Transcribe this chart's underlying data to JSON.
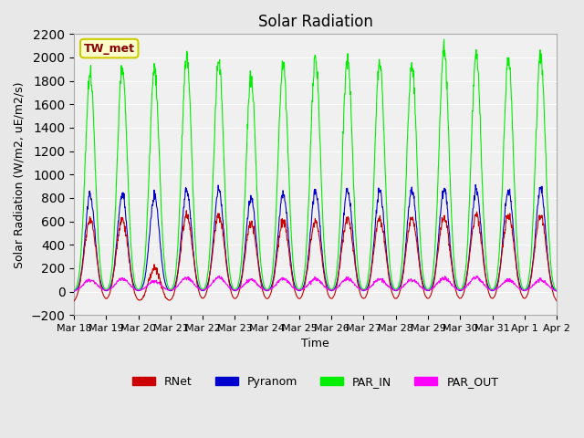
{
  "title": "Solar Radiation",
  "ylabel": "Solar Radiation (W/m2, uE/m2/s)",
  "xlabel": "Time",
  "ylim": [
    -200,
    2200
  ],
  "yticks": [
    -200,
    0,
    200,
    400,
    600,
    800,
    1000,
    1200,
    1400,
    1600,
    1800,
    2000,
    2200
  ],
  "bg_color": "#e8e8e8",
  "plot_bg": "#f0f0f0",
  "station_label": "TW_met",
  "station_label_color": "#8b0000",
  "station_box_facecolor": "#ffffcc",
  "station_box_edgecolor": "#cccc00",
  "colors": {
    "RNet": "#cc0000",
    "Pyranom": "#0000cc",
    "PAR_IN": "#00ee00",
    "PAR_OUT": "#ff00ff"
  },
  "n_days": 15,
  "start_day": 18,
  "peaks_rnet": [
    620,
    620,
    200,
    650,
    650,
    580,
    600,
    600,
    630,
    620,
    620,
    630,
    650,
    650,
    650
  ],
  "peaks_pyranom": [
    820,
    830,
    820,
    870,
    860,
    800,
    840,
    860,
    870,
    860,
    870,
    880,
    870,
    870,
    880
  ],
  "peaks_par_in": [
    1870,
    1920,
    1900,
    2020,
    1960,
    1810,
    1940,
    1980,
    2000,
    1960,
    1940,
    2080,
    2020,
    1990,
    2030
  ],
  "peaks_par_out": [
    100,
    110,
    90,
    120,
    120,
    100,
    110,
    110,
    110,
    105,
    100,
    115,
    120,
    100,
    100
  ],
  "trough_rnet": -100,
  "legend_entries": [
    "RNet",
    "Pyranom",
    "PAR_IN",
    "PAR_OUT"
  ]
}
